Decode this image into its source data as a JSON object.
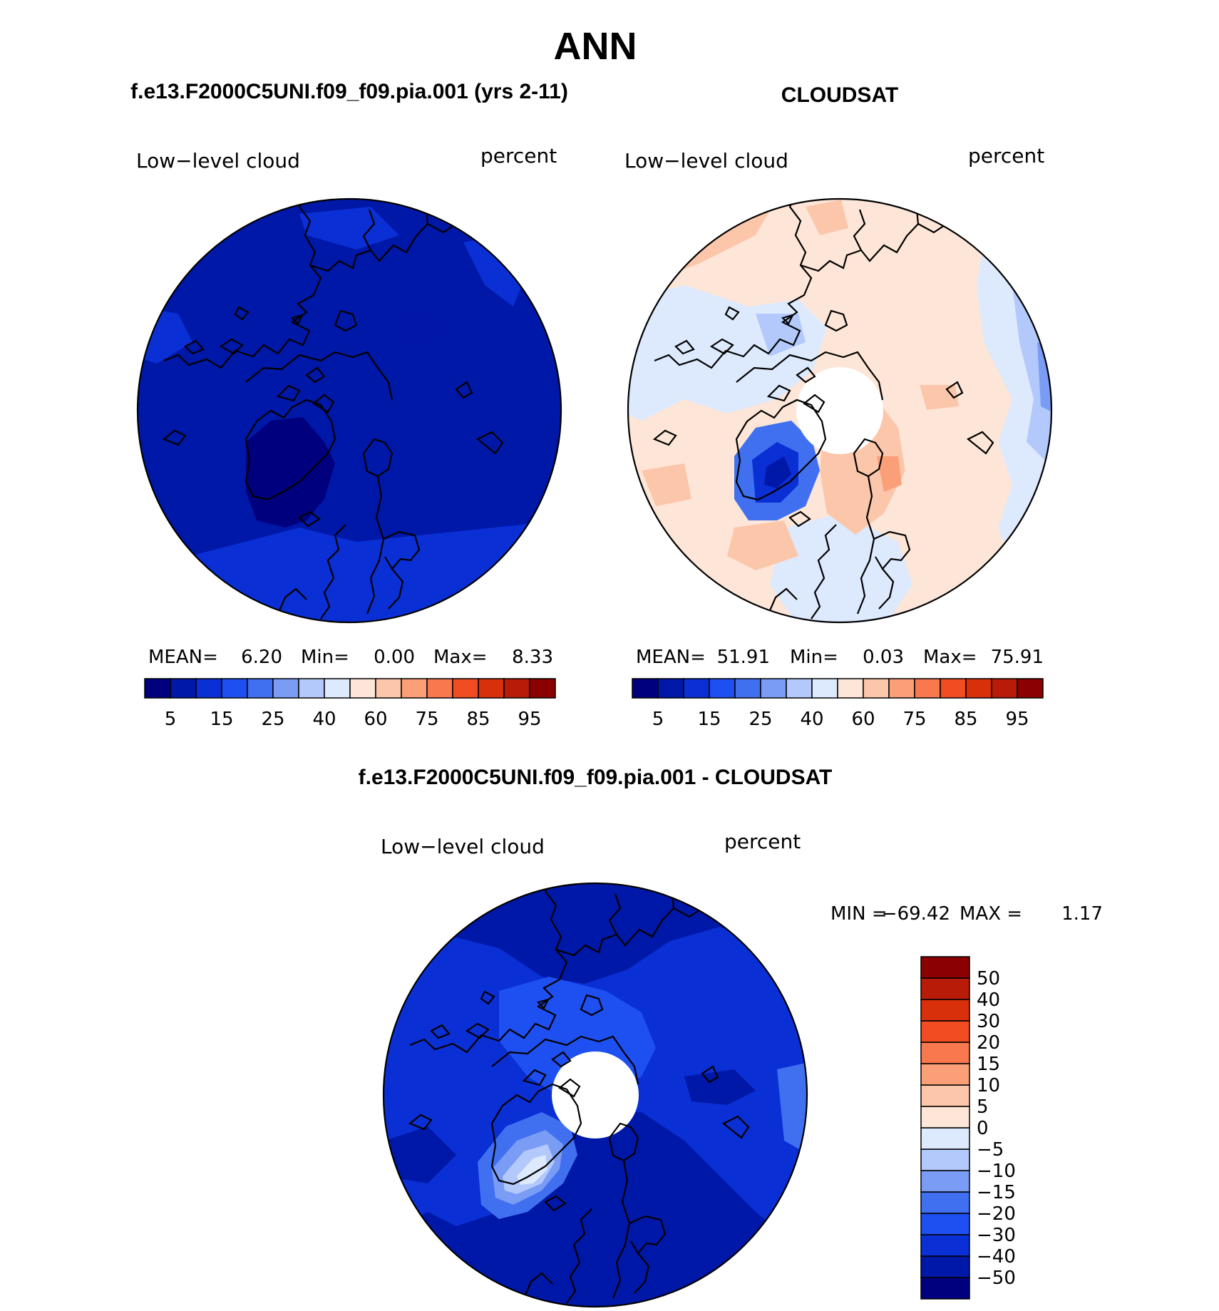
{
  "main_title": "ANN",
  "panels": {
    "model": {
      "title": "f.e13.F2000C5UNI.f09_f09.pia.001 (yrs 2-11)",
      "variable": "Low−level cloud",
      "units": "percent",
      "stats": {
        "mean_label": "MEAN=",
        "mean": "6.20",
        "min_label": "Min=",
        "min": "0.00",
        "max_label": "Max=",
        "max": "8.33"
      }
    },
    "obs": {
      "title": "CLOUDSAT",
      "variable": "Low−level cloud",
      "units": "percent",
      "stats": {
        "mean_label": "MEAN=",
        "mean": "51.91",
        "min_label": "Min=",
        "min": "0.03",
        "max_label": "Max=",
        "max": "75.91"
      }
    },
    "diff": {
      "title": "f.e13.F2000C5UNI.f09_f09.pia.001 - CLOUDSAT",
      "variable": "Low−level cloud",
      "units": "percent",
      "stats": {
        "min_label": "MIN =",
        "min": "−69.42",
        "max_label": "MAX =",
        "max": "1.17"
      }
    }
  },
  "colorbar_horizontal": {
    "colors": [
      "#00007f",
      "#0018a8",
      "#0a2fd4",
      "#1e4ff0",
      "#4070f0",
      "#7a9cf5",
      "#b3c9fb",
      "#dde9fd",
      "#fde6d7",
      "#fcc6ab",
      "#fb9f78",
      "#f9784e",
      "#f04d23",
      "#d9300c",
      "#b81c08",
      "#8b0000"
    ],
    "labels": [
      "5",
      "15",
      "25",
      "40",
      "60",
      "75",
      "85",
      "95"
    ]
  },
  "colorbar_vertical": {
    "colors": [
      "#00007f",
      "#0018a8",
      "#0a2fd4",
      "#1e4ff0",
      "#4070f0",
      "#7a9cf5",
      "#b3c9fb",
      "#dde9fd",
      "#fde6d7",
      "#fcc6ab",
      "#fb9f78",
      "#f9784e",
      "#f04d23",
      "#d9300c",
      "#b81c08",
      "#8b0000"
    ],
    "labels": [
      "50",
      "40",
      "30",
      "20",
      "15",
      "10",
      "5",
      "0",
      "−5",
      "−10",
      "−15",
      "−20",
      "−30",
      "−40",
      "−50"
    ]
  }
}
